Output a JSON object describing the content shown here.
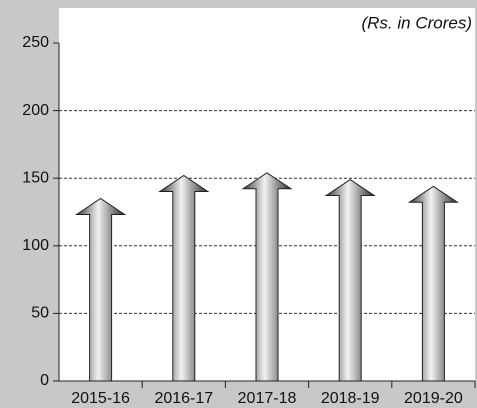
{
  "chart_data": {
    "type": "arrow-bar",
    "subtitle": "(Rs. in Crores)",
    "categories": [
      "2015-16",
      "2016-17",
      "2017-18",
      "2018-19",
      "2019-20"
    ],
    "values": [
      135,
      152,
      154,
      149,
      144
    ],
    "color": "#8a8a8a",
    "ylim": [
      0,
      250
    ],
    "yticks": [
      0,
      50,
      100,
      150,
      200,
      250
    ],
    "grid": true
  }
}
